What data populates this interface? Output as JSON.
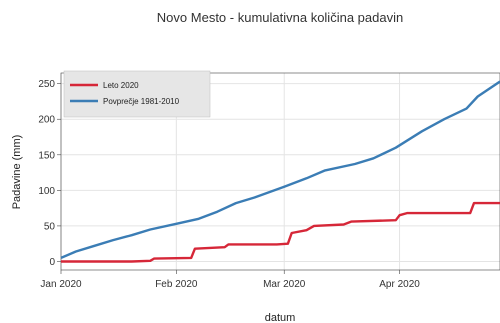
{
  "chart_data": {
    "type": "line",
    "title": "Novo Mesto - kumulativna količina padavin",
    "xlabel": "datum",
    "ylabel": "Padavine (mm)",
    "x_domain": [
      "2020-01-01",
      "2020-04-28"
    ],
    "ylim": [
      -12,
      265
    ],
    "y_ticks": [
      0,
      50,
      100,
      150,
      200,
      250
    ],
    "x_ticks": [
      {
        "date": "2020-01-01",
        "label": "Jan 2020"
      },
      {
        "date": "2020-02-01",
        "label": "Feb 2020"
      },
      {
        "date": "2020-03-01",
        "label": "Mar 2020"
      },
      {
        "date": "2020-04-01",
        "label": "Apr 2020"
      }
    ],
    "grid": true,
    "legend_position": "top-left",
    "series": [
      {
        "name": "Leto 2020",
        "color": "#d62738",
        "points": [
          [
            "2020-01-01",
            0
          ],
          [
            "2020-01-20",
            0
          ],
          [
            "2020-01-25",
            1
          ],
          [
            "2020-01-26",
            4
          ],
          [
            "2020-02-05",
            5
          ],
          [
            "2020-02-06",
            18
          ],
          [
            "2020-02-14",
            20
          ],
          [
            "2020-02-15",
            24
          ],
          [
            "2020-02-28",
            24
          ],
          [
            "2020-03-02",
            25
          ],
          [
            "2020-03-03",
            40
          ],
          [
            "2020-03-07",
            44
          ],
          [
            "2020-03-09",
            50
          ],
          [
            "2020-03-17",
            52
          ],
          [
            "2020-03-19",
            56
          ],
          [
            "2020-03-31",
            58
          ],
          [
            "2020-04-01",
            65
          ],
          [
            "2020-04-03",
            68
          ],
          [
            "2020-04-20",
            68
          ],
          [
            "2020-04-21",
            82
          ],
          [
            "2020-04-28",
            82
          ]
        ]
      },
      {
        "name": "Povprečje 1981-2010",
        "color": "#3b7db5",
        "points": [
          [
            "2020-01-01",
            5
          ],
          [
            "2020-01-05",
            14
          ],
          [
            "2020-01-10",
            22
          ],
          [
            "2020-01-15",
            30
          ],
          [
            "2020-01-20",
            37
          ],
          [
            "2020-01-25",
            45
          ],
          [
            "2020-02-01",
            53
          ],
          [
            "2020-02-07",
            60
          ],
          [
            "2020-02-12",
            70
          ],
          [
            "2020-02-17",
            82
          ],
          [
            "2020-02-22",
            90
          ],
          [
            "2020-03-01",
            105
          ],
          [
            "2020-03-07",
            117
          ],
          [
            "2020-03-12",
            128
          ],
          [
            "2020-03-20",
            137
          ],
          [
            "2020-03-25",
            145
          ],
          [
            "2020-03-31",
            160
          ],
          [
            "2020-04-07",
            183
          ],
          [
            "2020-04-13",
            200
          ],
          [
            "2020-04-19",
            215
          ],
          [
            "2020-04-22",
            232
          ],
          [
            "2020-04-28",
            253
          ]
        ]
      }
    ]
  }
}
